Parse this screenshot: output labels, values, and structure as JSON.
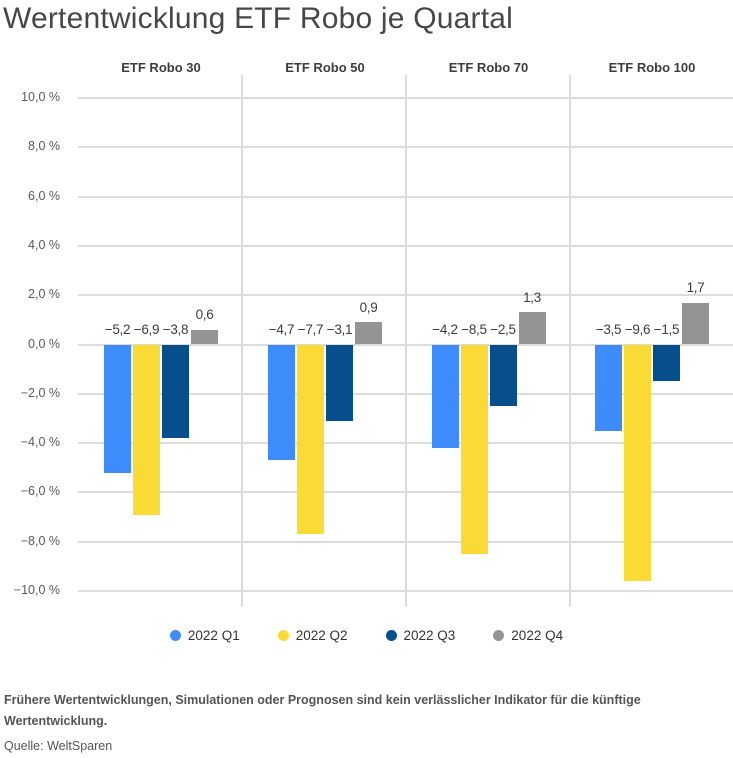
{
  "title": "Wertentwicklung ETF Robo je Quartal",
  "chart_data": {
    "type": "bar",
    "title": "Wertentwicklung ETF Robo je Quartal",
    "categories": [
      "ETF Robo 30",
      "ETF Robo 50",
      "ETF Robo 70",
      "ETF Robo 100"
    ],
    "series": [
      {
        "name": "2022 Q1",
        "color": "#3E8BFC",
        "values": [
          -5.2,
          -4.7,
          -4.2,
          -3.5
        ],
        "labels": [
          "−5,2",
          "−4,7",
          "−4,2",
          "−3,5"
        ]
      },
      {
        "name": "2022 Q2",
        "color": "#FADB36",
        "values": [
          -6.9,
          -7.7,
          -8.5,
          -9.6
        ],
        "labels": [
          "−6,9",
          "−7,7",
          "−8,5",
          "−9,6"
        ]
      },
      {
        "name": "2022 Q3",
        "color": "#064F8C",
        "values": [
          -3.8,
          -3.1,
          -2.5,
          -1.5
        ],
        "labels": [
          "−3,8",
          "−3,1",
          "−2,5",
          "−1,5"
        ]
      },
      {
        "name": "2022 Q4",
        "color": "#949494",
        "values": [
          0.6,
          0.9,
          1.3,
          1.7
        ],
        "labels": [
          "0,6",
          "0,9",
          "1,3",
          "1,7"
        ]
      }
    ],
    "ylim": [
      -10,
      10
    ],
    "ytick_step": 2,
    "yticks": [
      "10,0 %",
      "8,0 %",
      "6,0 %",
      "4,0 %",
      "2,0 %",
      "0,0 %",
      "−2,0 %",
      "−4,0 %",
      "−6,0 %",
      "−8,0 %",
      "−10,0 %"
    ],
    "unit": "%",
    "grid": true,
    "legend_position": "bottom"
  },
  "legend": {
    "items": [
      {
        "label": "2022 Q1",
        "color": "#3E8BFC"
      },
      {
        "label": "2022 Q2",
        "color": "#FADB36"
      },
      {
        "label": "2022 Q3",
        "color": "#064F8C"
      },
      {
        "label": "2022 Q4",
        "color": "#949494"
      }
    ]
  },
  "footer": {
    "disclaimer": "Frühere Wertentwicklungen, Simulationen oder Prognosen sind kein verlässlicher Indikator für die künftige Wertentwicklung.",
    "source": "Quelle: WeltSparen"
  },
  "colors": {
    "q1_blue": "#3E8BFC",
    "q2_yellow": "#FADB36",
    "q3_darkblue": "#064F8C",
    "q4_gray": "#949494",
    "gridline": "#DCDCDC"
  }
}
